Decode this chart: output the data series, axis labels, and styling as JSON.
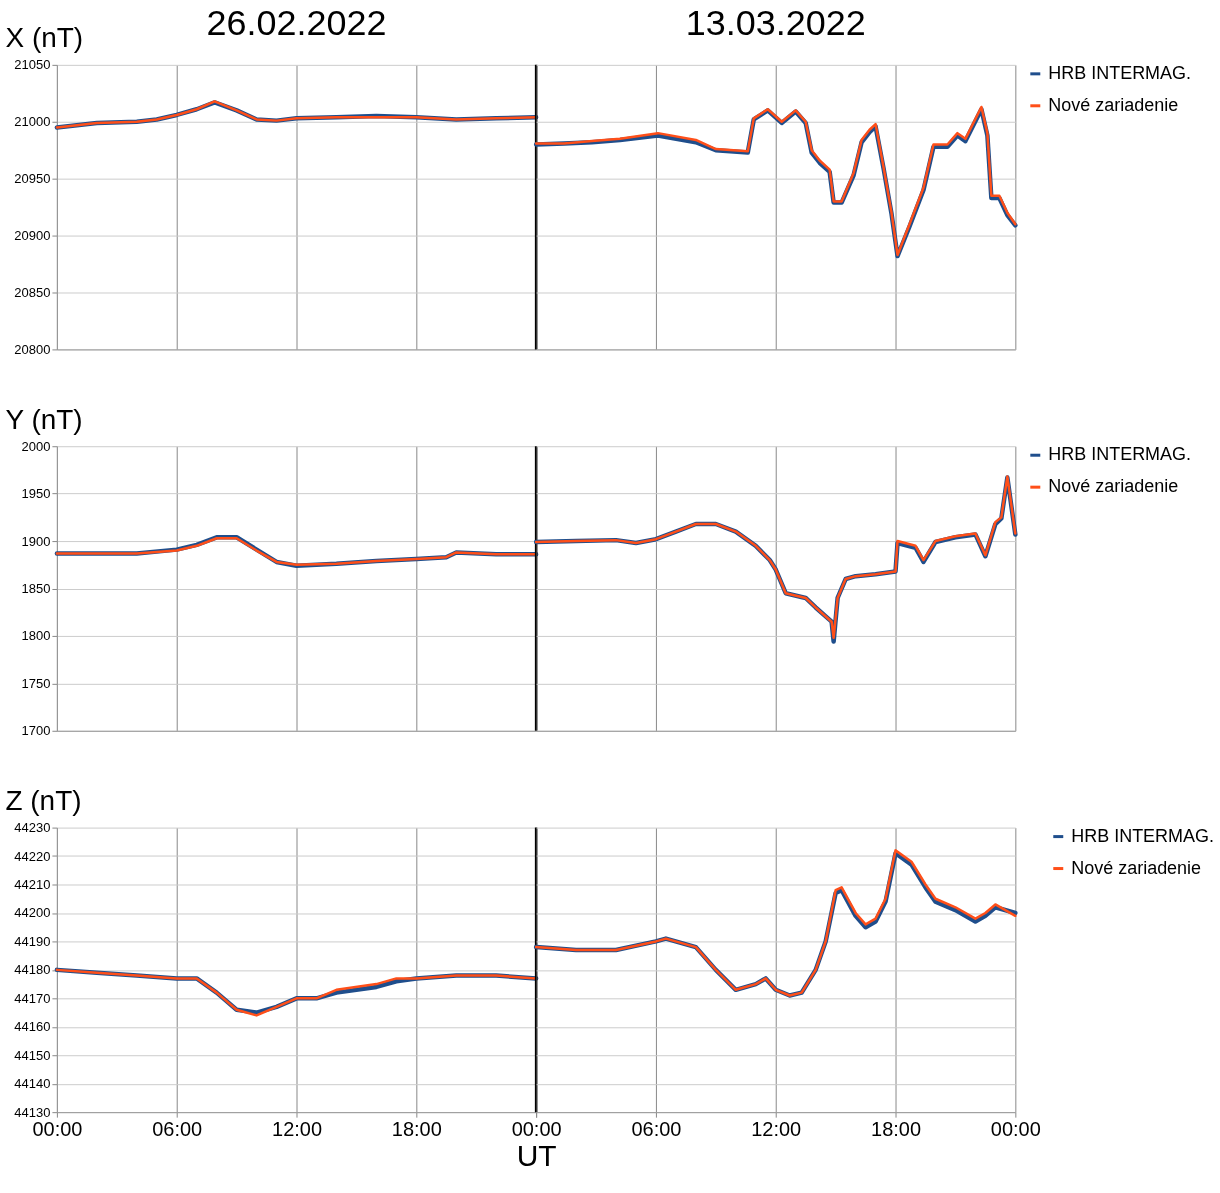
{
  "chart_data": [
    {
      "type": "line",
      "title": "26.02.2022",
      "ylabel": "X (nT)",
      "xlim": [
        0,
        24
      ],
      "xticks": [
        {
          "value": 0,
          "label": "00:00"
        },
        {
          "value": 6,
          "label": "06:00"
        },
        {
          "value": 12,
          "label": "12:00"
        },
        {
          "value": 18,
          "label": "18:00"
        },
        {
          "value": 24,
          "label": null
        }
      ],
      "ylim": [
        20800,
        21050
      ],
      "yticks": [
        20800,
        20850,
        20900,
        20950,
        21000,
        21050
      ],
      "grid": true,
      "legend": "right",
      "tick_labels": "y",
      "ref_lines": [
        {
          "axis": "x",
          "value": 24,
          "color": "#000000"
        }
      ],
      "x": [
        0,
        2,
        4,
        5,
        6,
        7,
        7.9,
        9,
        10,
        11,
        12,
        14,
        16,
        18,
        20,
        22,
        24
      ],
      "series": [
        {
          "name": "HRB INTERMAG.",
          "color": "#1f4e8c",
          "values": [
            20995,
            20999,
            21000,
            21002,
            21006,
            21011,
            21017,
            21010,
            21002,
            21001,
            21003,
            21004,
            21005,
            21004,
            21002,
            21003,
            21004
          ]
        },
        {
          "name": "Nové zariadenie",
          "color": "#ff4f19",
          "values": [
            20995,
            20999,
            21000,
            21002,
            21006,
            21011,
            21018,
            21010,
            21002,
            21001,
            21003,
            21004,
            21004,
            21004,
            21002,
            21003,
            21004
          ]
        }
      ]
    },
    {
      "type": "line",
      "title": "13.03.2022",
      "xlim": [
        0,
        24
      ],
      "xticks": [
        {
          "value": 0,
          "label": "00:00"
        },
        {
          "value": 6,
          "label": "06:00"
        },
        {
          "value": 12,
          "label": "12:00"
        },
        {
          "value": 18,
          "label": "18:00"
        },
        {
          "value": 24,
          "label": "00:00"
        }
      ],
      "ylim": [
        20800,
        21050
      ],
      "yticks": [
        20800,
        20850,
        20900,
        20950,
        21000,
        21050
      ],
      "grid": true,
      "legend": "right",
      "tick_labels": false,
      "x": [
        0,
        1.4,
        2.8,
        4.2,
        6.1,
        8,
        9,
        10.6,
        10.9,
        11.6,
        12.3,
        13,
        13.5,
        13.8,
        14.2,
        14.7,
        14.9,
        15.3,
        15.9,
        16.3,
        16.7,
        17,
        17.4,
        17.8,
        18.1,
        18.7,
        19.4,
        19.9,
        20.6,
        21.1,
        21.5,
        22.3,
        22.6,
        22.8,
        23.2,
        23.6,
        24
      ],
      "series": [
        {
          "name": "HRB INTERMAG.",
          "color": "#1f4e8c",
          "values": [
            20980,
            20981,
            20982,
            20984,
            20988,
            20982,
            20975,
            20973,
            21002,
            21010,
            20999,
            21009,
            20999,
            20973,
            20964,
            20956,
            20929,
            20929,
            20953,
            20982,
            20991,
            20996,
            20959,
            20919,
            20882,
            20908,
            20940,
            20978,
            20978,
            20988,
            20983,
            21011,
            20988,
            20933,
            20933,
            20918,
            20909
          ]
        },
        {
          "name": "Nové zariadenie",
          "color": "#ff4f19",
          "values": [
            20981,
            20981,
            20983,
            20985,
            20990,
            20984,
            20976,
            20974,
            21003,
            21011,
            21000,
            21010,
            21000,
            20975,
            20966,
            20958,
            20930,
            20930,
            20955,
            20984,
            20993,
            20998,
            20960,
            20920,
            20883,
            20910,
            20942,
            20980,
            20980,
            20990,
            20985,
            21013,
            20990,
            20935,
            20935,
            20920,
            20910
          ]
        }
      ]
    },
    {
      "type": "line",
      "ylabel": "Y (nT)",
      "xlim": [
        0,
        24
      ],
      "xticks": [
        {
          "value": 0,
          "label": "00:00"
        },
        {
          "value": 6,
          "label": "06:00"
        },
        {
          "value": 12,
          "label": "12:00"
        },
        {
          "value": 18,
          "label": "18:00"
        },
        {
          "value": 24,
          "label": null
        }
      ],
      "ylim": [
        1700,
        2000
      ],
      "yticks": [
        1700,
        1750,
        1800,
        1850,
        1900,
        1950,
        2000
      ],
      "grid": true,
      "legend": "right",
      "tick_labels": "y",
      "ref_lines": [
        {
          "axis": "x",
          "value": 24,
          "color": "#000000"
        }
      ],
      "x": [
        0,
        4,
        6,
        7,
        8,
        9,
        10,
        11,
        12,
        14,
        16,
        18,
        19.5,
        20,
        22,
        24
      ],
      "series": [
        {
          "name": "HRB INTERMAG.",
          "color": "#1f4e8c",
          "values": [
            1887,
            1887,
            1891,
            1896,
            1904,
            1904,
            1891,
            1878,
            1874,
            1876,
            1879,
            1881,
            1883,
            1888,
            1886,
            1886
          ]
        },
        {
          "name": "Nové zariadenie",
          "color": "#ff4f19",
          "values": [
            1887,
            1887,
            1890,
            1895,
            1903,
            1903,
            1890,
            1878,
            1875,
            1876,
            1879,
            1881,
            1883,
            1888,
            1886,
            1886
          ]
        }
      ]
    },
    {
      "type": "line",
      "xlim": [
        0,
        24
      ],
      "xticks": [
        {
          "value": 0,
          "label": "00:00"
        },
        {
          "value": 6,
          "label": "06:00"
        },
        {
          "value": 12,
          "label": "12:00"
        },
        {
          "value": 18,
          "label": "18:00"
        },
        {
          "value": 24,
          "label": "00:00"
        }
      ],
      "ylim": [
        1700,
        2000
      ],
      "yticks": [
        1700,
        1750,
        1800,
        1850,
        1900,
        1950,
        2000
      ],
      "grid": true,
      "legend": "right",
      "tick_labels": false,
      "x": [
        0,
        2,
        4,
        5,
        6,
        7,
        8,
        9,
        10,
        11,
        11.7,
        12,
        12.5,
        13.5,
        14,
        14.8,
        14.9,
        15.1,
        15.5,
        16,
        17,
        18,
        18.1,
        19,
        19.4,
        20,
        21,
        22,
        22.5,
        23,
        23.3,
        23.6,
        24
      ],
      "series": [
        {
          "name": "HRB INTERMAG.",
          "color": "#1f4e8c",
          "values": [
            1899,
            1900,
            1901,
            1898,
            1902,
            1910,
            1918,
            1918,
            1910,
            1895,
            1880,
            1870,
            1845,
            1840,
            1830,
            1815,
            1794,
            1840,
            1860,
            1863,
            1865,
            1868,
            1898,
            1893,
            1878,
            1899,
            1904,
            1907,
            1884,
            1918,
            1924,
            1967,
            1907
          ]
        },
        {
          "name": "Nové zariadenie",
          "color": "#ff4f19",
          "values": [
            1899,
            1900,
            1901,
            1898,
            1902,
            1910,
            1918,
            1918,
            1910,
            1895,
            1880,
            1870,
            1845,
            1840,
            1830,
            1815,
            1798,
            1840,
            1860,
            1863,
            1865,
            1868,
            1900,
            1895,
            1880,
            1900,
            1905,
            1908,
            1885,
            1920,
            1925,
            1968,
            1908
          ]
        }
      ]
    },
    {
      "type": "line",
      "ylabel": "Z (nT)",
      "xlabel": "UT",
      "xlim": [
        0,
        24
      ],
      "xticks": [
        {
          "value": 0,
          "label": "00:00"
        },
        {
          "value": 6,
          "label": "06:00"
        },
        {
          "value": 12,
          "label": "12:00"
        },
        {
          "value": 18,
          "label": "18:00"
        },
        {
          "value": 24,
          "label": null
        }
      ],
      "ylim": [
        44130,
        44230
      ],
      "yticks": [
        44130,
        44140,
        44150,
        44160,
        44170,
        44180,
        44190,
        44200,
        44210,
        44220,
        44230
      ],
      "grid": true,
      "legend": "right",
      "ref_lines": [
        {
          "axis": "x",
          "value": 24,
          "color": "#000000"
        }
      ],
      "x": [
        0,
        2,
        4,
        6,
        7,
        8,
        9,
        10,
        11,
        12,
        13,
        14,
        16,
        17,
        18,
        20,
        22,
        24
      ],
      "series": [
        {
          "name": "HRB INTERMAG.",
          "color": "#1f4e8c",
          "values": [
            44180,
            44179,
            44178,
            44177,
            44177,
            44172,
            44166,
            44165,
            44167,
            44170,
            44170,
            44172,
            44174,
            44176,
            44177,
            44178,
            44178,
            44177
          ]
        },
        {
          "name": "Nové zariadenie",
          "color": "#ff4f19",
          "values": [
            44180,
            44179,
            44178,
            44177,
            44177,
            44172,
            44166,
            44164,
            44167,
            44170,
            44170,
            44173,
            44175,
            44177,
            44177,
            44178,
            44178,
            44177
          ]
        }
      ]
    },
    {
      "type": "line",
      "xlim": [
        0,
        24
      ],
      "xticks": [
        {
          "value": 0,
          "label": "00:00"
        },
        {
          "value": 6,
          "label": "06:00"
        },
        {
          "value": 12,
          "label": "12:00"
        },
        {
          "value": 18,
          "label": "18:00"
        },
        {
          "value": 24,
          "label": "00:00"
        }
      ],
      "ylim": [
        44130,
        44230
      ],
      "yticks": [
        44130,
        44140,
        44150,
        44160,
        44170,
        44180,
        44190,
        44200,
        44210,
        44220,
        44230
      ],
      "grid": true,
      "legend": "right",
      "tick_labels": "x",
      "x": [
        0,
        2,
        4,
        6,
        6.5,
        8,
        9,
        10,
        11,
        11.5,
        12,
        12.7,
        13.3,
        14,
        14.5,
        15,
        15.3,
        16,
        16.5,
        17,
        17.5,
        18,
        18.8,
        19.5,
        20,
        21,
        22,
        22.5,
        23,
        24
      ],
      "series": [
        {
          "name": "HRB INTERMAG.",
          "color": "#1f4e8c",
          "values": [
            44188,
            44187,
            44187,
            44190,
            44191,
            44188,
            44180,
            44173,
            44175,
            44177,
            44173,
            44171,
            44172,
            44180,
            44190,
            44207,
            44208,
            44199,
            44195,
            44197,
            44204,
            44221,
            44217,
            44209,
            44204,
            44201,
            44197,
            44199,
            44202,
            44200
          ]
        },
        {
          "name": "Nové zariadenie",
          "color": "#ff4f19",
          "values": [
            44188,
            44187,
            44187,
            44190,
            44191,
            44188,
            44180,
            44173,
            44175,
            44177,
            44173,
            44171,
            44172,
            44180,
            44190,
            44208,
            44209,
            44200,
            44196,
            44198,
            44205,
            44222,
            44218,
            44210,
            44205,
            44202,
            44198,
            44200,
            44203,
            44199
          ]
        }
      ]
    }
  ]
}
